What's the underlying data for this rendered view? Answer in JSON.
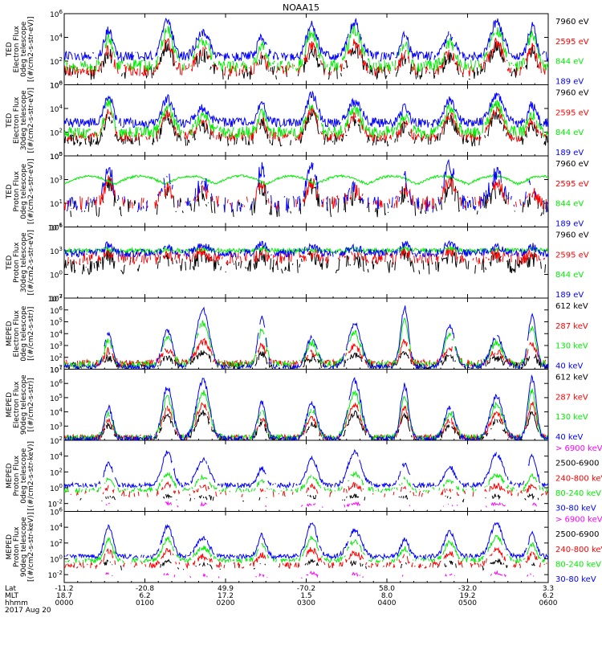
{
  "title": "NOAA15",
  "colors": {
    "axis": "#000000",
    "black": "#000000",
    "red": "#ff0000",
    "green": "#00ee00",
    "blue": "#0000ff",
    "magenta": "#ff00ff"
  },
  "chart_data": {
    "type": "line",
    "title": "NOAA15",
    "xaxis": {
      "range": [
        "0000",
        "0600"
      ],
      "row_labels": [
        "Lat",
        "MLT",
        "hhmm"
      ],
      "date_label": "2017 Aug 20",
      "ticks": [
        {
          "lat": "-11.2",
          "mlt": "18.7",
          "hhmm": "0000"
        },
        {
          "lat": "-20.8",
          "mlt": "6.2",
          "hhmm": "0100"
        },
        {
          "lat": "49.9",
          "mlt": "17.2",
          "hhmm": "0200"
        },
        {
          "lat": "-70.2",
          "mlt": "1.5",
          "hhmm": "0300"
        },
        {
          "lat": "58.0",
          "mlt": "8.0",
          "hhmm": "0400"
        },
        {
          "lat": "-32.0",
          "mlt": "19.2",
          "hhmm": "0500"
        },
        {
          "lat": "3.3",
          "mlt": "6.2",
          "hhmm": "0600"
        }
      ]
    },
    "panels": [
      {
        "ylabel": [
          "TED",
          "Electron Flux",
          "0deg telescope",
          "[(#/cm2-s-str-eV)]"
        ],
        "yticks": [
          "10^6",
          "10^4",
          "10^2",
          "10^0"
        ],
        "ylog": [
          0,
          6
        ],
        "legend": [
          {
            "text": "7960 eV",
            "color": "black"
          },
          {
            "text": "2595 eV",
            "color": "red"
          },
          {
            "text": "844 eV",
            "color": "green"
          },
          {
            "text": "189 eV",
            "color": "blue"
          }
        ],
        "series": [
          {
            "name": "7960 eV",
            "color": "black",
            "baseline": 1.0,
            "peak": 3.2,
            "noise": 0.6,
            "sparse": 0.5
          },
          {
            "name": "2595 eV",
            "color": "red",
            "baseline": 1.2,
            "peak": 3.6,
            "noise": 0.5,
            "sparse": 0.3
          },
          {
            "name": "844 eV",
            "color": "green",
            "baseline": 1.6,
            "peak": 4.8,
            "noise": 0.5,
            "sparse": 0.2
          },
          {
            "name": "189 eV",
            "color": "blue",
            "baseline": 2.4,
            "peak": 5.4,
            "noise": 0.4,
            "sparse": 0.1
          }
        ]
      },
      {
        "ylabel": [
          "TED",
          "Electron Flux",
          "30deg telescope",
          "[(#/cm2-s-str-eV)]"
        ],
        "yticks": [
          "10^6",
          "10^4",
          "10^2",
          "10^0"
        ],
        "ylog": [
          0,
          6
        ],
        "legend": [
          {
            "text": "7960 eV",
            "color": "black"
          },
          {
            "text": "2595 eV",
            "color": "red"
          },
          {
            "text": "844 eV",
            "color": "green"
          },
          {
            "text": "189 eV",
            "color": "blue"
          }
        ],
        "series": [
          {
            "name": "7960 eV",
            "color": "black",
            "baseline": 1.3,
            "peak": 3.6,
            "noise": 0.5,
            "sparse": 0.4
          },
          {
            "name": "2595 eV",
            "color": "red",
            "baseline": 1.6,
            "peak": 3.9,
            "noise": 0.4,
            "sparse": 0.25
          },
          {
            "name": "844 eV",
            "color": "green",
            "baseline": 2.0,
            "peak": 4.5,
            "noise": 0.5,
            "sparse": 0.1
          },
          {
            "name": "189 eV",
            "color": "blue",
            "baseline": 2.8,
            "peak": 5.2,
            "noise": 0.4,
            "sparse": 0.05
          }
        ]
      },
      {
        "ylabel": [
          "TED",
          "Proton Flux",
          "0deg telescope",
          "[(#/cm2-s-str-eV)]"
        ],
        "yticks": [
          "10^5",
          "10^3",
          "10^1",
          "10^-1"
        ],
        "ylog": [
          -1,
          5
        ],
        "legend": [
          {
            "text": "7960 eV",
            "color": "black"
          },
          {
            "text": "2595 eV",
            "color": "red"
          },
          {
            "text": "844 eV",
            "color": "green"
          },
          {
            "text": "189 eV",
            "color": "blue"
          }
        ],
        "series": [
          {
            "name": "7960 eV",
            "color": "black",
            "baseline": 0.6,
            "peak": 2.6,
            "noise": 0.8,
            "sparse": 0.6
          },
          {
            "name": "2595 eV",
            "color": "red",
            "baseline": 1.0,
            "peak": 3.0,
            "noise": 0.6,
            "sparse": 0.5
          },
          {
            "name": "844 eV",
            "color": "green",
            "baseline": 2.6,
            "peak": 3.4,
            "noise": 0.2,
            "sparse": 0.0
          },
          {
            "name": "189 eV",
            "color": "blue",
            "baseline": 0.9,
            "peak": 4.2,
            "noise": 0.7,
            "sparse": 0.5
          }
        ]
      },
      {
        "ylabel": [
          "TED",
          "Proton Flux",
          "30deg telescope",
          "[(#/cm2-s-str-eV)]"
        ],
        "yticks": [
          "10^6",
          "10^3",
          "10^0",
          "10^-3"
        ],
        "ylog": [
          -3,
          6
        ],
        "legend": [
          {
            "text": "7960 eV",
            "color": "black"
          },
          {
            "text": "2595 eV",
            "color": "red"
          },
          {
            "text": "844 eV",
            "color": "green"
          },
          {
            "text": "189 eV",
            "color": "blue"
          }
        ],
        "series": [
          {
            "name": "7960 eV",
            "color": "black",
            "baseline": 1.0,
            "peak": 2.6,
            "noise": 1.0,
            "sparse": 0.4
          },
          {
            "name": "2595 eV",
            "color": "red",
            "baseline": 2.0,
            "peak": 3.0,
            "noise": 0.8,
            "sparse": 0.3
          },
          {
            "name": "844 eV",
            "color": "green",
            "baseline": 3.0,
            "peak": 3.3,
            "noise": 0.3,
            "sparse": 0.0
          },
          {
            "name": "189 eV",
            "color": "blue",
            "baseline": 2.7,
            "peak": 4.0,
            "noise": 0.5,
            "sparse": 0.1
          }
        ]
      },
      {
        "ylabel": [
          "MEPED",
          "Electron Flux",
          "0deg telescope",
          "[(#/cm2-s-str)]"
        ],
        "yticks": [
          "10^7",
          "10^6",
          "10^5",
          "10^4",
          "10^3",
          "10^2",
          "10^1"
        ],
        "ylog": [
          1,
          7
        ],
        "legend": [
          {
            "text": "612 keV",
            "color": "black"
          },
          {
            "text": "287 keV",
            "color": "red"
          },
          {
            "text": "130 keV",
            "color": "green"
          },
          {
            "text": "40 keV",
            "color": "blue"
          }
        ],
        "series": [
          {
            "name": "612 keV",
            "color": "black",
            "baseline": 1.3,
            "peak": 2.5,
            "noise": 0.3,
            "sparse": 0.3
          },
          {
            "name": "287 keV",
            "color": "red",
            "baseline": 1.5,
            "peak": 3.4,
            "noise": 0.3,
            "sparse": 0.2
          },
          {
            "name": "130 keV",
            "color": "green",
            "baseline": 1.4,
            "peak": 5.0,
            "noise": 0.3,
            "sparse": 0.2
          },
          {
            "name": "40 keV",
            "color": "blue",
            "baseline": 1.2,
            "peak": 6.2,
            "noise": 0.2,
            "sparse": 0.1
          }
        ]
      },
      {
        "ylabel": [
          "MEPED",
          "Electron Flux",
          "90deg telescope",
          "[(#/cm2-s-str)]"
        ],
        "yticks": [
          "10^7",
          "10^6",
          "10^5",
          "10^4",
          "10^3",
          "10^2"
        ],
        "ylog": [
          2,
          7
        ],
        "legend": [
          {
            "text": "612 keV",
            "color": "black"
          },
          {
            "text": "287 keV",
            "color": "red"
          },
          {
            "text": "130 keV",
            "color": "green"
          },
          {
            "text": "40 keV",
            "color": "blue"
          }
        ],
        "series": [
          {
            "name": "612 keV",
            "color": "black",
            "baseline": 2.1,
            "peak": 4.0,
            "noise": 0.2,
            "sparse": 0.3
          },
          {
            "name": "287 keV",
            "color": "red",
            "baseline": 2.2,
            "peak": 4.6,
            "noise": 0.2,
            "sparse": 0.2
          },
          {
            "name": "130 keV",
            "color": "green",
            "baseline": 2.2,
            "peak": 5.5,
            "noise": 0.2,
            "sparse": 0.1
          },
          {
            "name": "40 keV",
            "color": "blue",
            "baseline": 2.1,
            "peak": 6.4,
            "noise": 0.2,
            "sparse": 0.05
          }
        ]
      },
      {
        "ylabel": [
          "MEPED",
          "Proton Flux",
          "0deg telescope",
          "[(#/cm2-s-str-keV)]"
        ],
        "yticks": [
          "10^4",
          "10^2",
          "10^0",
          "10^-2"
        ],
        "ylog": [
          -3,
          6
        ],
        "legend": [
          {
            "text": "> 6900 keV",
            "color": "magenta"
          },
          {
            "text": "2500-6900",
            "color": "black"
          },
          {
            "text": "240-800 keV",
            "color": "red"
          },
          {
            "text": "80-240 keV",
            "color": "green"
          },
          {
            "text": "30-80 keV",
            "color": "blue"
          }
        ],
        "series": [
          {
            "name": "> 6900 keV",
            "color": "magenta",
            "baseline": -2.4,
            "peak": -2.0,
            "noise": 0.2,
            "sparse": 0.97
          },
          {
            "name": "2500-6900",
            "color": "black",
            "baseline": -1.5,
            "peak": -1.0,
            "noise": 0.3,
            "sparse": 0.9
          },
          {
            "name": "240-800 keV",
            "color": "red",
            "baseline": -0.8,
            "peak": 0.3,
            "noise": 0.4,
            "sparse": 0.6
          },
          {
            "name": "80-240 keV",
            "color": "green",
            "baseline": -0.3,
            "peak": 1.8,
            "noise": 0.3,
            "sparse": 0.3
          },
          {
            "name": "30-80 keV",
            "color": "blue",
            "baseline": 0.3,
            "peak": 4.6,
            "noise": 0.3,
            "sparse": 0.1
          }
        ]
      },
      {
        "ylabel": [
          "MEPED",
          "Proton Flux",
          "90deg telescope",
          "[(#/cm2-s-str-keV)]"
        ],
        "yticks": [
          "10^6",
          "10^4",
          "10^2",
          "10^0",
          "10^-2"
        ],
        "ylog": [
          -3,
          6
        ],
        "legend": [
          {
            "text": "> 6900 keV",
            "color": "magenta"
          },
          {
            "text": "2500-6900",
            "color": "black"
          },
          {
            "text": "240-800 keV",
            "color": "red"
          },
          {
            "text": "80-240 keV",
            "color": "green"
          },
          {
            "text": "30-80 keV",
            "color": "blue"
          }
        ],
        "series": [
          {
            "name": "> 6900 keV",
            "color": "magenta",
            "baseline": -2.4,
            "peak": -1.8,
            "noise": 0.2,
            "sparse": 0.96
          },
          {
            "name": "2500-6900",
            "color": "black",
            "baseline": -1.2,
            "peak": -0.3,
            "noise": 0.3,
            "sparse": 0.85
          },
          {
            "name": "240-800 keV",
            "color": "red",
            "baseline": -0.8,
            "peak": 1.2,
            "noise": 0.4,
            "sparse": 0.4
          },
          {
            "name": "80-240 keV",
            "color": "green",
            "baseline": -0.2,
            "peak": 2.8,
            "noise": 0.3,
            "sparse": 0.2
          },
          {
            "name": "30-80 keV",
            "color": "blue",
            "baseline": 0.3,
            "peak": 4.5,
            "noise": 0.3,
            "sparse": 0.05
          }
        ]
      }
    ],
    "event_hours": [
      0.55,
      1.28,
      1.72,
      2.45,
      3.07,
      3.6,
      4.22,
      4.78,
      5.36,
      5.8
    ]
  }
}
